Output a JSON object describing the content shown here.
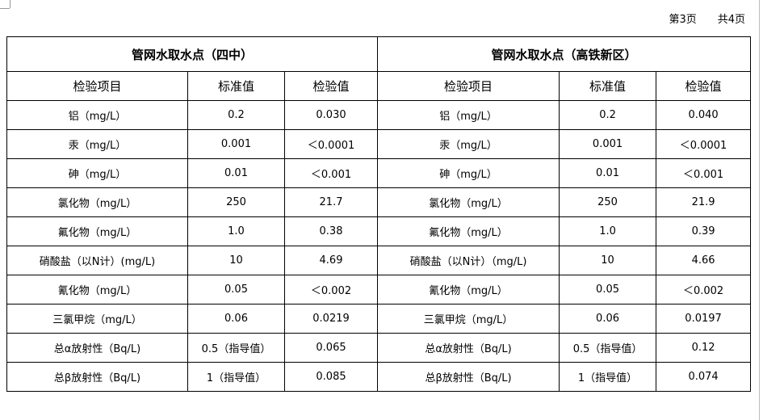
{
  "header": {
    "page": "第3页",
    "total": "共4页"
  },
  "table": {
    "groups": [
      "管网水取水点（四中）",
      "管网水取水点（高铁新区）"
    ],
    "columns": [
      "检验项目",
      "标准值",
      "检验值",
      "检验项目",
      "标准值",
      "检验值"
    ],
    "rows": [
      [
        "铝（mg/L）",
        "0.2",
        "0.030",
        "铝（mg/L）",
        "0.2",
        "0.040"
      ],
      [
        "汞（mg/L）",
        "0.001",
        "＜0.0001",
        "汞（mg/L）",
        "0.001",
        "＜0.0001"
      ],
      [
        "砷（mg/L）",
        "0.01",
        "＜0.001",
        "砷（mg/L）",
        "0.01",
        "＜0.001"
      ],
      [
        "氯化物（mg/L）",
        "250",
        "21.7",
        "氯化物（mg/L）",
        "250",
        "21.9"
      ],
      [
        "氟化物（mg/L）",
        "1.0",
        "0.38",
        "氟化物（mg/L）",
        "1.0",
        "0.39"
      ],
      [
        "硝酸盐（以N计）(mg/L)",
        "10",
        "4.69",
        "硝酸盐（以N计）（mg/L)",
        "10",
        "4.66"
      ],
      [
        "氰化物（mg/L）",
        "0.05",
        "＜0.002",
        "氰化物（mg/L）",
        "0.05",
        "＜0.002"
      ],
      [
        "三氯甲烷（mg/L）",
        "0.06",
        "0.0219",
        "三氯甲烷（mg/L）",
        "0.06",
        "0.0197"
      ],
      [
        "总α放射性（Bq/L)",
        "0.5（指导值）",
        "0.065",
        "总α放射性（Bq/L)",
        "0.5（指导值）",
        "0.12"
      ],
      [
        "总β放射性（Bq/L)",
        "1（指导值）",
        "0.085",
        "总β放射性（Bq/L)",
        "1（指导值）",
        "0.074"
      ]
    ]
  }
}
